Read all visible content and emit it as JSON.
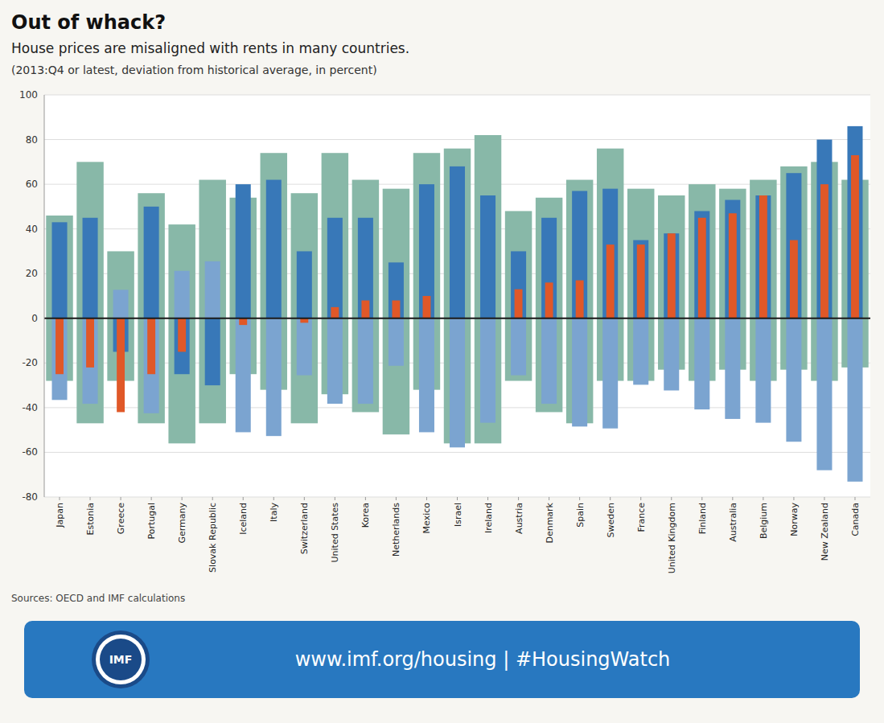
{
  "chart_data": {
    "type": "bar",
    "title": "Out of whack?",
    "subtitle": "House prices are misaligned with rents in many countries.",
    "annotations": [
      "(2013:Q4 or latest, deviation from historical average, in percent)",
      "Sources: OECD and IMF calculations",
      "www.imf.org/housing  |  #HousingWatch",
      "IMF"
    ],
    "categories": [
      "Japan",
      "Estonia",
      "Greece",
      "Portugal",
      "Germany",
      "Slovak Republic",
      "Iceland",
      "Italy",
      "Switzerland",
      "United States",
      "Korea",
      "Netherlands",
      "Mexico",
      "Israel",
      "Ireland",
      "Austria",
      "Denmark",
      "Spain",
      "Sweden",
      "France",
      "United Kingdom",
      "Finland",
      "Australia",
      "Belgium",
      "Norway",
      "New Zealand",
      "Canada"
    ],
    "series": [
      {
        "color": "#88b8a8",
        "values": [
          46,
          70,
          30,
          56,
          42,
          62,
          54,
          74,
          56,
          74,
          62,
          58,
          74,
          76,
          82,
          48,
          54,
          62,
          76,
          58,
          55,
          60,
          58,
          62,
          68,
          70,
          62
        ]
      },
      {
        "color": "#88b8a8",
        "values": [
          -28,
          -47,
          -28,
          -47,
          -56,
          -47,
          -25,
          -32,
          -47,
          -34,
          -42,
          -52,
          -32,
          -56,
          -56,
          -28,
          -42,
          -47,
          -28,
          -28,
          -23,
          -28,
          -23,
          -28,
          -23,
          -28,
          -22
        ]
      },
      {
        "color": "#3878b8",
        "values": [
          43,
          45,
          -15,
          50,
          -25,
          -30,
          60,
          62,
          30,
          45,
          45,
          25,
          60,
          68,
          55,
          30,
          45,
          57,
          58,
          35,
          38,
          48,
          53,
          55,
          65,
          80,
          86
        ]
      },
      {
        "color": "#7ba4d0",
        "values": [
          -36.55,
          -38.25,
          12.75,
          -42.5,
          21.25,
          25.5,
          -51,
          -52.7,
          -25.5,
          -38.25,
          -38.25,
          -21.25,
          -51,
          -57.8,
          -46.75,
          -25.5,
          -38.25,
          -48.45,
          -49.3,
          -29.75,
          -32.3,
          -40.8,
          -45.05,
          -46.75,
          -55.25,
          -68,
          -73.1
        ]
      },
      {
        "color": "#e05828",
        "values": [
          -25,
          -22,
          -42,
          -25,
          -15,
          0,
          -3,
          0,
          -2,
          5,
          8,
          8,
          10,
          0,
          0,
          13,
          16,
          17,
          33,
          33,
          38,
          45,
          47,
          55,
          35,
          60,
          73
        ]
      }
    ],
    "ylim": [
      -80,
      100
    ],
    "yticks": [
      -80,
      -60,
      -40,
      -20,
      0,
      20,
      40,
      60,
      80,
      100
    ],
    "grid": true
  }
}
